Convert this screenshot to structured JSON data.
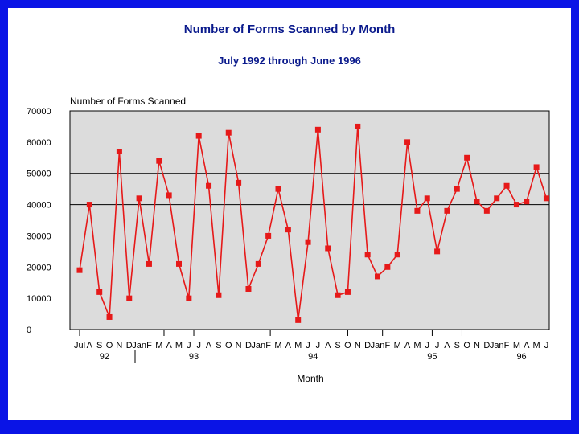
{
  "chart_data": {
    "type": "line",
    "title": "Number of Forms Scanned by Month",
    "subtitle": "July 1992 through June 1996",
    "ylabel": "Number of Forms Scanned",
    "xlabel": "Month",
    "ylim": [
      0,
      70000
    ],
    "yticks": [
      0,
      10000,
      20000,
      30000,
      40000,
      50000,
      60000,
      70000
    ],
    "ytick_labels": [
      "0",
      "10000",
      "20000",
      "30000",
      "40000",
      "50000",
      "60000",
      "70000"
    ],
    "grid_values": [
      40000,
      50000
    ],
    "month_labels": [
      "Jul",
      "A",
      "S",
      "O",
      "N",
      "D",
      "Jan",
      "F",
      "M",
      "A",
      "M",
      "J",
      "J",
      "A",
      "S",
      "O",
      "N",
      "D",
      "Jan",
      "F",
      "M",
      "A",
      "M",
      "J",
      "J",
      "A",
      "S",
      "O",
      "N",
      "D",
      "Jan",
      "F",
      "M",
      "A",
      "M",
      "J",
      "J",
      "A",
      "S",
      "O",
      "N",
      "D",
      "Jan",
      "F",
      "M",
      "A",
      "M",
      "J"
    ],
    "year_labels": [
      {
        "label": "92",
        "month_index": 2.5
      },
      {
        "label": "93",
        "month_index": 11.5
      },
      {
        "label": "94",
        "month_index": 23.5
      },
      {
        "label": "95",
        "month_index": 35.5
      },
      {
        "label": "96",
        "month_index": 44.5
      }
    ],
    "series": [
      {
        "name": "Number of Forms Scanned",
        "color": "#e61919",
        "values": [
          19000,
          40000,
          12000,
          4000,
          57000,
          10000,
          42000,
          21000,
          54000,
          43000,
          21000,
          10000,
          62000,
          46000,
          11000,
          63000,
          47000,
          13000,
          21000,
          30000,
          45000,
          32000,
          3000,
          28000,
          64000,
          26000,
          11000,
          12000,
          65000,
          24000,
          17000,
          20000,
          24000,
          60000,
          38000,
          42000,
          25000,
          38000,
          45000,
          55000,
          41000,
          38000,
          42000,
          46000,
          40000,
          41000,
          52000,
          42000
        ]
      }
    ]
  }
}
